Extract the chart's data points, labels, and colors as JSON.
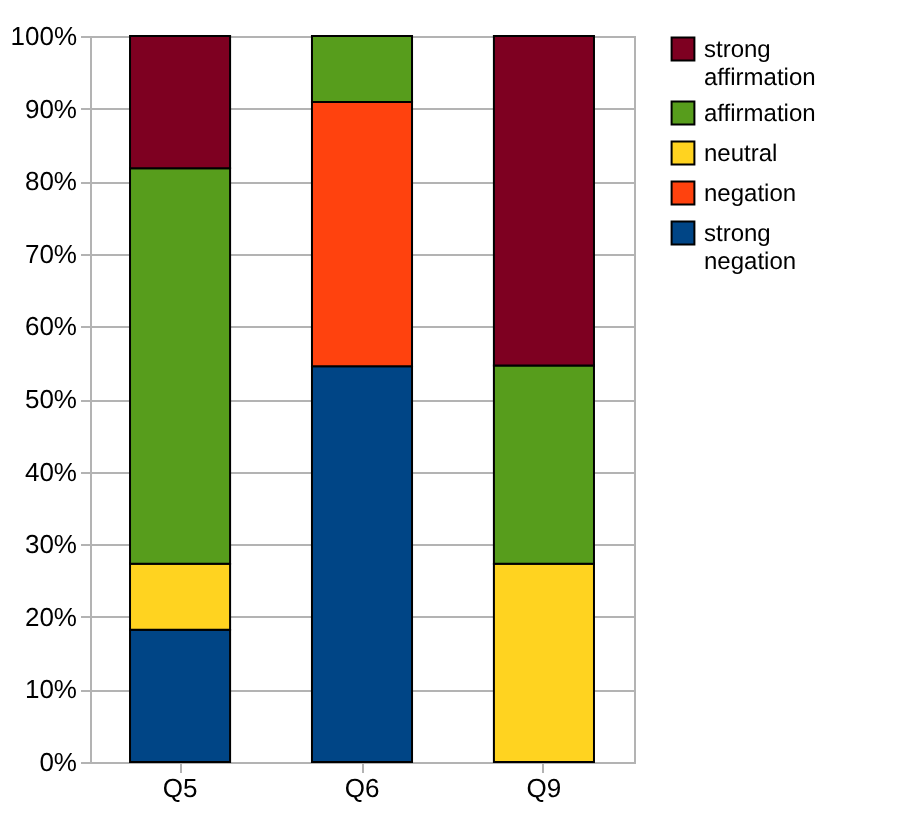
{
  "chart_data": {
    "type": "bar",
    "stacked": true,
    "categories": [
      "Q5",
      "Q6",
      "Q9"
    ],
    "series": [
      {
        "name": "strong negation",
        "color": "#004586",
        "values": [
          18.2,
          54.5,
          0
        ]
      },
      {
        "name": "negation",
        "color": "#ff420e",
        "values": [
          0,
          36.4,
          0
        ]
      },
      {
        "name": "neutral",
        "color": "#ffd320",
        "values": [
          9.1,
          0,
          27.3
        ]
      },
      {
        "name": "affirmation",
        "color": "#579d1c",
        "values": [
          54.5,
          9.1,
          27.3
        ]
      },
      {
        "name": "strong affirmation",
        "color": "#7e0021",
        "values": [
          18.2,
          0,
          45.4
        ]
      }
    ],
    "ylim": [
      0,
      100
    ],
    "yticks": [
      {
        "value": 0,
        "label": "0%"
      },
      {
        "value": 10,
        "label": "10%"
      },
      {
        "value": 20,
        "label": "20%"
      },
      {
        "value": 30,
        "label": "30%"
      },
      {
        "value": 40,
        "label": "40%"
      },
      {
        "value": 50,
        "label": "50%"
      },
      {
        "value": 60,
        "label": "60%"
      },
      {
        "value": 70,
        "label": "70%"
      },
      {
        "value": 80,
        "label": "80%"
      },
      {
        "value": 90,
        "label": "90%"
      },
      {
        "value": 100,
        "label": "100%"
      }
    ],
    "grid": "y",
    "legend": "right"
  }
}
